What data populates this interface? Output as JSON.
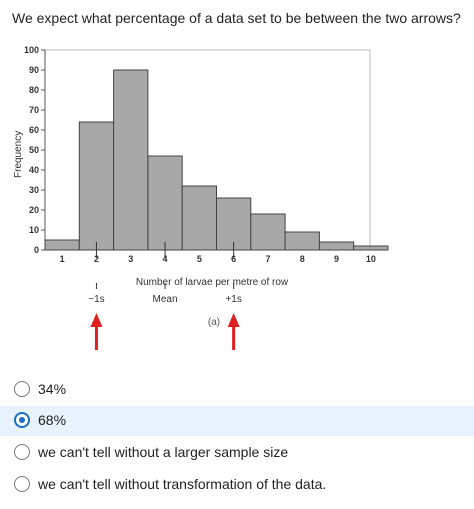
{
  "question": "We expect what percentage of a data set to be between the two arrows?",
  "chart_data": {
    "type": "bar",
    "ylabel": "Frequency",
    "xlabel": "Number of larvae per metre of row",
    "y_ticks": [
      "100",
      "90",
      "80",
      "70",
      "60",
      "50",
      "40",
      "30",
      "20",
      "10",
      "0"
    ],
    "x_ticks": [
      "1",
      "2",
      "3",
      "4",
      "5",
      "6",
      "7",
      "8",
      "9",
      "10"
    ],
    "ylim": [
      0,
      100
    ],
    "bins": [
      {
        "from": 0.5,
        "to": 1.5,
        "value": 5
      },
      {
        "from": 1.5,
        "to": 2.5,
        "value": 64
      },
      {
        "from": 2.5,
        "to": 3.5,
        "value": 90
      },
      {
        "from": 3.5,
        "to": 4.5,
        "value": 47
      },
      {
        "from": 4.5,
        "to": 5.5,
        "value": 32
      },
      {
        "from": 5.5,
        "to": 6.5,
        "value": 26
      },
      {
        "from": 6.5,
        "to": 7.5,
        "value": 18
      },
      {
        "from": 7.5,
        "to": 8.5,
        "value": 9
      },
      {
        "from": 8.5,
        "to": 9.5,
        "value": 4
      },
      {
        "from": 9.5,
        "to": 10.5,
        "value": 2
      }
    ],
    "markers": [
      {
        "label": "−1s",
        "x": 2
      },
      {
        "label": "Mean",
        "x": 4
      },
      {
        "label": "+1s",
        "x": 6
      }
    ],
    "arrows_at": [
      2,
      6
    ],
    "arrow_color": "#e02020",
    "bar_color": "#a8a8a8",
    "panel_label": "(a)"
  },
  "options": [
    {
      "label": "34%",
      "selected": false
    },
    {
      "label": "68%",
      "selected": true
    },
    {
      "label": "we can't tell without a larger sample size",
      "selected": false
    },
    {
      "label": "we can't tell without transformation of the data.",
      "selected": false
    }
  ]
}
